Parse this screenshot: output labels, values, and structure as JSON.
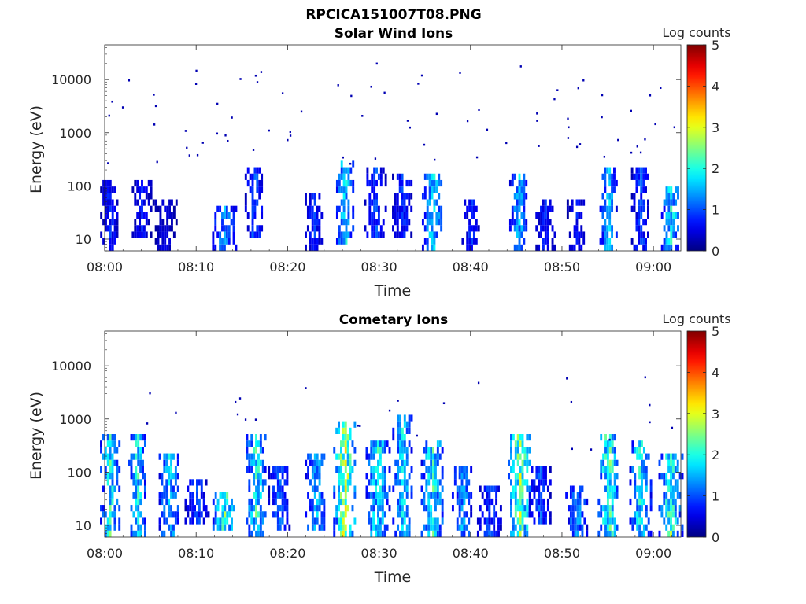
{
  "figure_title": "RPCICA151007T08.PNG",
  "chart_data": [
    {
      "type": "heatmap",
      "title": "Solar Wind Ions",
      "xlabel": "Time",
      "ylabel": "Energy (eV)",
      "x_ticks": [
        "08:00",
        "08:10",
        "08:20",
        "08:30",
        "08:40",
        "08:50",
        "09:00"
      ],
      "x_range_minutes": [
        0,
        63
      ],
      "y_scale": "log",
      "y_ticks": [
        10,
        100,
        1000,
        10000
      ],
      "y_tick_labels": [
        "10",
        "100",
        "1000",
        "10000"
      ],
      "ylim": [
        6,
        45000
      ],
      "colorbar": {
        "label": "Log counts",
        "range": [
          0,
          5
        ],
        "ticks": [
          "0",
          "1",
          "2",
          "3",
          "4",
          "5"
        ],
        "colormap": "jet"
      },
      "bursts": [
        {
          "t": 0.5,
          "e_min": 6,
          "e_max": 130,
          "level": 0.8
        },
        {
          "t": 4.0,
          "e_min": 10,
          "e_max": 140,
          "level": 0.7
        },
        {
          "t": 6.5,
          "e_min": 6,
          "e_max": 60,
          "level": 0.5
        },
        {
          "t": 13.0,
          "e_min": 6,
          "e_max": 40,
          "level": 1.5
        },
        {
          "t": 16.3,
          "e_min": 12,
          "e_max": 200,
          "level": 1.1
        },
        {
          "t": 22.8,
          "e_min": 6,
          "e_max": 80,
          "level": 0.9
        },
        {
          "t": 26.2,
          "e_min": 8,
          "e_max": 300,
          "level": 1.9
        },
        {
          "t": 29.5,
          "e_min": 10,
          "e_max": 200,
          "level": 1.0
        },
        {
          "t": 32.5,
          "e_min": 12,
          "e_max": 150,
          "level": 0.9
        },
        {
          "t": 35.8,
          "e_min": 6,
          "e_max": 180,
          "level": 1.8
        },
        {
          "t": 40.0,
          "e_min": 6,
          "e_max": 60,
          "level": 0.9
        },
        {
          "t": 45.2,
          "e_min": 6,
          "e_max": 150,
          "level": 1.6
        },
        {
          "t": 48.0,
          "e_min": 6,
          "e_max": 60,
          "level": 0.8
        },
        {
          "t": 51.5,
          "e_min": 6,
          "e_max": 60,
          "level": 0.7
        },
        {
          "t": 55.0,
          "e_min": 6,
          "e_max": 200,
          "level": 1.7
        },
        {
          "t": 58.5,
          "e_min": 6,
          "e_max": 200,
          "level": 1.0
        },
        {
          "t": 61.8,
          "e_min": 6,
          "e_max": 100,
          "level": 2.0
        }
      ]
    },
    {
      "type": "heatmap",
      "title": "Cometary Ions",
      "xlabel": "Time",
      "ylabel": "Energy (eV)",
      "x_ticks": [
        "08:00",
        "08:10",
        "08:20",
        "08:30",
        "08:40",
        "08:50",
        "09:00"
      ],
      "x_range_minutes": [
        0,
        63
      ],
      "y_scale": "log",
      "y_ticks": [
        10,
        100,
        1000,
        10000
      ],
      "y_tick_labels": [
        "10",
        "100",
        "1000",
        "10000"
      ],
      "ylim": [
        6,
        45000
      ],
      "colorbar": {
        "label": "Log counts",
        "range": [
          0,
          5
        ],
        "ticks": [
          "0",
          "1",
          "2",
          "3",
          "4",
          "5"
        ],
        "colormap": "jet"
      },
      "bursts": [
        {
          "t": 0.5,
          "e_min": 6,
          "e_max": 500,
          "level": 2.1
        },
        {
          "t": 3.5,
          "e_min": 6,
          "e_max": 500,
          "level": 2.0
        },
        {
          "t": 7.0,
          "e_min": 6,
          "e_max": 250,
          "level": 1.8
        },
        {
          "t": 10.0,
          "e_min": 10,
          "e_max": 80,
          "level": 1.0
        },
        {
          "t": 13.0,
          "e_min": 8,
          "e_max": 45,
          "level": 2.4
        },
        {
          "t": 16.5,
          "e_min": 6,
          "e_max": 500,
          "level": 2.2
        },
        {
          "t": 19.0,
          "e_min": 8,
          "e_max": 120,
          "level": 1.2
        },
        {
          "t": 23.0,
          "e_min": 8,
          "e_max": 200,
          "level": 1.7
        },
        {
          "t": 26.2,
          "e_min": 6,
          "e_max": 1000,
          "level": 2.9
        },
        {
          "t": 29.8,
          "e_min": 6,
          "e_max": 350,
          "level": 2.0
        },
        {
          "t": 32.5,
          "e_min": 6,
          "e_max": 1100,
          "level": 1.8
        },
        {
          "t": 35.8,
          "e_min": 6,
          "e_max": 450,
          "level": 2.1
        },
        {
          "t": 39.0,
          "e_min": 6,
          "e_max": 120,
          "level": 1.5
        },
        {
          "t": 42.0,
          "e_min": 6,
          "e_max": 50,
          "level": 1.0
        },
        {
          "t": 45.3,
          "e_min": 6,
          "e_max": 500,
          "level": 2.6
        },
        {
          "t": 47.5,
          "e_min": 10,
          "e_max": 120,
          "level": 1.1
        },
        {
          "t": 51.5,
          "e_min": 6,
          "e_max": 60,
          "level": 1.5
        },
        {
          "t": 55.0,
          "e_min": 6,
          "e_max": 500,
          "level": 2.4
        },
        {
          "t": 58.5,
          "e_min": 6,
          "e_max": 350,
          "level": 2.0
        },
        {
          "t": 61.8,
          "e_min": 6,
          "e_max": 200,
          "level": 2.3
        }
      ]
    }
  ]
}
